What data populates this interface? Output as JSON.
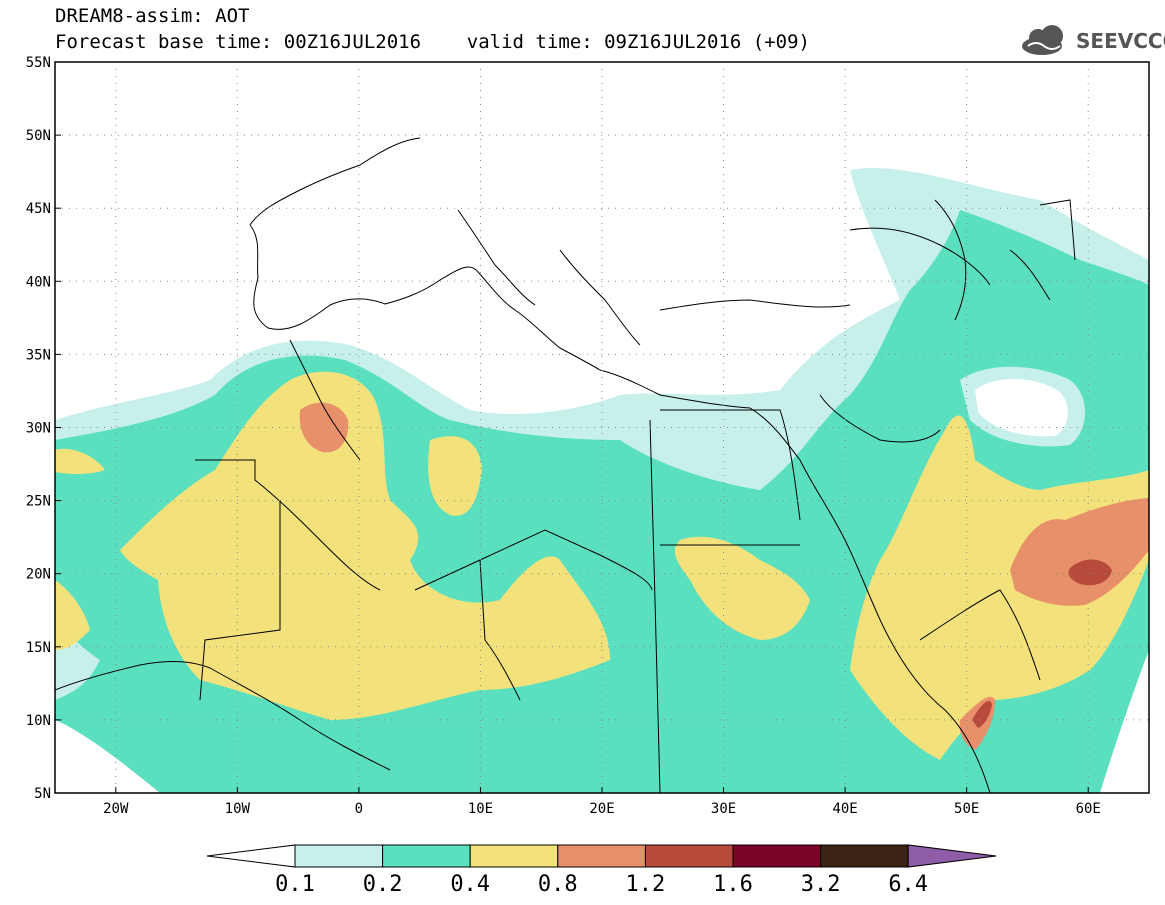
{
  "header": {
    "title_line1": "DREAM8-assim: AOT",
    "title_line2": "Forecast base time: 00Z16JUL2016    valid time: 09Z16JUL2016 (+09)"
  },
  "logo": {
    "text": "SEEVCCC",
    "icon": "cloud-icon",
    "color": "#555555"
  },
  "map": {
    "lon_range": [
      -25,
      65
    ],
    "lat_range": [
      5,
      55
    ],
    "lat_ticks": [
      {
        "value": 55,
        "label": "55N"
      },
      {
        "value": 50,
        "label": "50N"
      },
      {
        "value": 45,
        "label": "45N"
      },
      {
        "value": 40,
        "label": "40N"
      },
      {
        "value": 35,
        "label": "35N"
      },
      {
        "value": 30,
        "label": "30N"
      },
      {
        "value": 25,
        "label": "25N"
      },
      {
        "value": 20,
        "label": "20N"
      },
      {
        "value": 15,
        "label": "15N"
      },
      {
        "value": 10,
        "label": "10N"
      },
      {
        "value": 5,
        "label": "5N"
      }
    ],
    "lon_ticks": [
      {
        "value": -20,
        "label": "20W"
      },
      {
        "value": -10,
        "label": "10W"
      },
      {
        "value": 0,
        "label": "0"
      },
      {
        "value": 10,
        "label": "10E"
      },
      {
        "value": 20,
        "label": "20E"
      },
      {
        "value": 30,
        "label": "30E"
      },
      {
        "value": 40,
        "label": "40E"
      },
      {
        "value": 50,
        "label": "50E"
      },
      {
        "value": 60,
        "label": "60E"
      }
    ],
    "grid": "dotted"
  },
  "colorbar": {
    "labels": [
      "0.1",
      "0.2",
      "0.4",
      "0.8",
      "1.2",
      "1.6",
      "3.2",
      "6.4"
    ],
    "below_color": "#ffffff",
    "colors": [
      "#c8f0ea",
      "#5ae0be",
      "#f3e27c",
      "#e8906a",
      "#b84a3c",
      "#7c0428",
      "#3b2416"
    ],
    "above_color": "#8f5ea8"
  }
}
